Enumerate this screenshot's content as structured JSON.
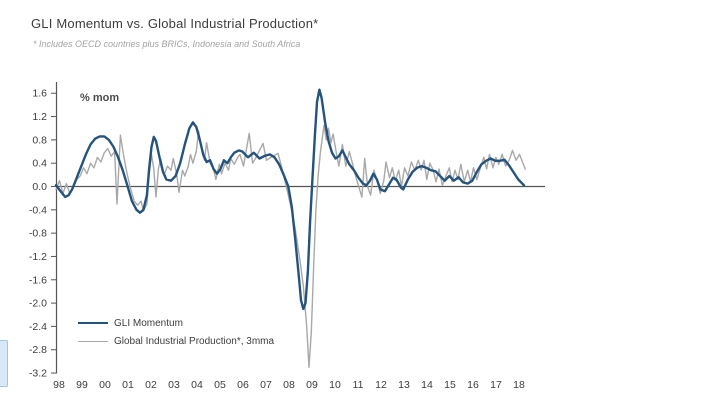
{
  "title": "GLI Momentum vs. Global Industrial Production*",
  "footnote": "* Includes OECD countries plus BRICs, Indonesia and South Africa",
  "unit_label": "% mom",
  "legend": {
    "items": [
      {
        "label": "GLI Momentum"
      },
      {
        "label": "Global Industrial Production*, 3mma"
      }
    ]
  },
  "colors": {
    "gli_momentum": "#24547e",
    "global_ip": "#a8a8a8",
    "axis": "#555555",
    "tick_text": "#3d3d3d",
    "title_text": "#3d3d3d",
    "footnote_text": "#a3a3a3"
  },
  "chart_data": {
    "type": "line",
    "title": "GLI Momentum vs. Global Industrial Production*",
    "subtitle": "* Includes OECD countries plus BRICs, Indonesia and South Africa",
    "ylabel": "% mom",
    "ylim": [
      -3.2,
      1.6
    ],
    "xlim": [
      1998,
      2018.9
    ],
    "grid": false,
    "legend_position": "lower-left",
    "y_ticks": [
      "1.6",
      "1.2",
      "0.8",
      "0.4",
      "0.0",
      "-0.4",
      "-0.8",
      "-1.2",
      "-1.6",
      "-2.0",
      "-2.4",
      "-2.8",
      "-3.2"
    ],
    "x_ticks": [
      {
        "label": "98",
        "year": 1998
      },
      {
        "label": "99",
        "year": 1999
      },
      {
        "label": "00",
        "year": 2000
      },
      {
        "label": "01",
        "year": 2001
      },
      {
        "label": "02",
        "year": 2002
      },
      {
        "label": "03",
        "year": 2003
      },
      {
        "label": "04",
        "year": 2004
      },
      {
        "label": "05",
        "year": 2005
      },
      {
        "label": "06",
        "year": 2006
      },
      {
        "label": "07",
        "year": 2007
      },
      {
        "label": "08",
        "year": 2008
      },
      {
        "label": "09",
        "year": 2009
      },
      {
        "label": "10",
        "year": 2010
      },
      {
        "label": "11",
        "year": 2011
      },
      {
        "label": "12",
        "year": 2012
      },
      {
        "label": "13",
        "year": 2013
      },
      {
        "label": "14",
        "year": 2014
      },
      {
        "label": "15",
        "year": 2015
      },
      {
        "label": "16",
        "year": 2016
      },
      {
        "label": "17",
        "year": 2017
      },
      {
        "label": "18",
        "year": 2018
      }
    ],
    "series": [
      {
        "name": "GLI Momentum",
        "color": "#24547e",
        "stroke_width": 2.4,
        "points": [
          [
            1998.0,
            0.02
          ],
          [
            1998.2,
            -0.08
          ],
          [
            1998.4,
            -0.18
          ],
          [
            1998.55,
            -0.15
          ],
          [
            1998.7,
            -0.05
          ],
          [
            1998.9,
            0.15
          ],
          [
            1999.1,
            0.35
          ],
          [
            1999.3,
            0.55
          ],
          [
            1999.5,
            0.72
          ],
          [
            1999.7,
            0.82
          ],
          [
            1999.9,
            0.86
          ],
          [
            2000.1,
            0.86
          ],
          [
            2000.3,
            0.8
          ],
          [
            2000.5,
            0.68
          ],
          [
            2000.7,
            0.5
          ],
          [
            2000.9,
            0.28
          ],
          [
            2001.1,
            0.02
          ],
          [
            2001.3,
            -0.25
          ],
          [
            2001.5,
            -0.4
          ],
          [
            2001.65,
            -0.45
          ],
          [
            2001.8,
            -0.4
          ],
          [
            2001.95,
            -0.15
          ],
          [
            2002.05,
            0.3
          ],
          [
            2002.15,
            0.68
          ],
          [
            2002.25,
            0.85
          ],
          [
            2002.35,
            0.78
          ],
          [
            2002.5,
            0.5
          ],
          [
            2002.65,
            0.25
          ],
          [
            2002.8,
            0.12
          ],
          [
            2003.0,
            0.1
          ],
          [
            2003.2,
            0.18
          ],
          [
            2003.4,
            0.4
          ],
          [
            2003.6,
            0.72
          ],
          [
            2003.8,
            1.0
          ],
          [
            2003.95,
            1.1
          ],
          [
            2004.1,
            1.02
          ],
          [
            2004.25,
            0.8
          ],
          [
            2004.4,
            0.55
          ],
          [
            2004.55,
            0.42
          ],
          [
            2004.7,
            0.45
          ],
          [
            2004.85,
            0.3
          ],
          [
            2005.0,
            0.22
          ],
          [
            2005.15,
            0.3
          ],
          [
            2005.3,
            0.45
          ],
          [
            2005.45,
            0.4
          ],
          [
            2005.6,
            0.5
          ],
          [
            2005.75,
            0.58
          ],
          [
            2005.95,
            0.62
          ],
          [
            2006.1,
            0.6
          ],
          [
            2006.35,
            0.5
          ],
          [
            2006.6,
            0.58
          ],
          [
            2006.85,
            0.48
          ],
          [
            2007.1,
            0.53
          ],
          [
            2007.3,
            0.55
          ],
          [
            2007.5,
            0.5
          ],
          [
            2007.7,
            0.38
          ],
          [
            2007.9,
            0.2
          ],
          [
            2008.1,
            0.0
          ],
          [
            2008.25,
            -0.35
          ],
          [
            2008.4,
            -0.9
          ],
          [
            2008.55,
            -1.5
          ],
          [
            2008.65,
            -1.95
          ],
          [
            2008.75,
            -2.1
          ],
          [
            2008.85,
            -2.0
          ],
          [
            2008.95,
            -1.45
          ],
          [
            2009.05,
            -0.6
          ],
          [
            2009.15,
            0.15
          ],
          [
            2009.25,
            0.85
          ],
          [
            2009.35,
            1.45
          ],
          [
            2009.45,
            1.66
          ],
          [
            2009.55,
            1.52
          ],
          [
            2009.7,
            1.1
          ],
          [
            2009.85,
            0.78
          ],
          [
            2010.0,
            0.58
          ],
          [
            2010.15,
            0.48
          ],
          [
            2010.3,
            0.52
          ],
          [
            2010.45,
            0.62
          ],
          [
            2010.6,
            0.5
          ],
          [
            2010.75,
            0.38
          ],
          [
            2010.95,
            0.28
          ],
          [
            2011.15,
            0.15
          ],
          [
            2011.35,
            0.05
          ],
          [
            2011.5,
            0.02
          ],
          [
            2011.65,
            0.1
          ],
          [
            2011.8,
            0.22
          ],
          [
            2011.95,
            0.12
          ],
          [
            2012.1,
            -0.05
          ],
          [
            2012.3,
            -0.08
          ],
          [
            2012.5,
            0.05
          ],
          [
            2012.65,
            0.15
          ],
          [
            2012.8,
            0.12
          ],
          [
            2013.0,
            -0.02
          ],
          [
            2013.1,
            -0.05
          ],
          [
            2013.3,
            0.12
          ],
          [
            2013.5,
            0.25
          ],
          [
            2013.7,
            0.32
          ],
          [
            2013.9,
            0.35
          ],
          [
            2014.1,
            0.32
          ],
          [
            2014.3,
            0.28
          ],
          [
            2014.5,
            0.26
          ],
          [
            2014.7,
            0.18
          ],
          [
            2014.9,
            0.1
          ],
          [
            2015.1,
            0.18
          ],
          [
            2015.3,
            0.1
          ],
          [
            2015.5,
            0.16
          ],
          [
            2015.7,
            0.07
          ],
          [
            2015.9,
            0.05
          ],
          [
            2016.1,
            0.1
          ],
          [
            2016.3,
            0.25
          ],
          [
            2016.5,
            0.38
          ],
          [
            2016.7,
            0.44
          ],
          [
            2016.9,
            0.48
          ],
          [
            2017.1,
            0.44
          ],
          [
            2017.3,
            0.44
          ],
          [
            2017.5,
            0.46
          ],
          [
            2017.7,
            0.36
          ],
          [
            2017.9,
            0.24
          ],
          [
            2018.1,
            0.12
          ],
          [
            2018.35,
            0.02
          ]
        ]
      },
      {
        "name": "Global Industrial Production*, 3mma",
        "color": "#a8a8a8",
        "stroke_width": 1.4,
        "points": [
          [
            1998.0,
            -0.05
          ],
          [
            1998.15,
            0.1
          ],
          [
            1998.3,
            -0.12
          ],
          [
            1998.45,
            0.05
          ],
          [
            1998.6,
            -0.12
          ],
          [
            1998.75,
            -0.02
          ],
          [
            1998.9,
            0.12
          ],
          [
            1999.05,
            0.18
          ],
          [
            1999.2,
            0.32
          ],
          [
            1999.35,
            0.22
          ],
          [
            1999.5,
            0.4
          ],
          [
            1999.65,
            0.32
          ],
          [
            1999.8,
            0.5
          ],
          [
            1999.95,
            0.42
          ],
          [
            2000.1,
            0.58
          ],
          [
            2000.25,
            0.65
          ],
          [
            2000.4,
            0.52
          ],
          [
            2000.55,
            0.6
          ],
          [
            2000.65,
            -0.3
          ],
          [
            2000.8,
            0.88
          ],
          [
            2000.95,
            0.5
          ],
          [
            2001.1,
            0.2
          ],
          [
            2001.25,
            -0.05
          ],
          [
            2001.4,
            -0.25
          ],
          [
            2001.55,
            -0.32
          ],
          [
            2001.7,
            -0.25
          ],
          [
            2001.8,
            -0.42
          ],
          [
            2001.95,
            -0.3
          ],
          [
            2002.05,
            0.2
          ],
          [
            2002.15,
            0.55
          ],
          [
            2002.25,
            0.3
          ],
          [
            2002.35,
            -0.18
          ],
          [
            2002.45,
            0.3
          ],
          [
            2002.55,
            0.48
          ],
          [
            2002.7,
            0.2
          ],
          [
            2002.85,
            0.35
          ],
          [
            2003.0,
            0.28
          ],
          [
            2003.1,
            0.48
          ],
          [
            2003.25,
            0.2
          ],
          [
            2003.35,
            -0.1
          ],
          [
            2003.5,
            0.28
          ],
          [
            2003.6,
            0.18
          ],
          [
            2003.75,
            0.35
          ],
          [
            2003.85,
            0.55
          ],
          [
            2003.95,
            0.4
          ],
          [
            2004.1,
            0.6
          ],
          [
            2004.2,
            0.95
          ],
          [
            2004.35,
            0.6
          ],
          [
            2004.45,
            0.45
          ],
          [
            2004.55,
            0.75
          ],
          [
            2004.7,
            0.4
          ],
          [
            2004.85,
            0.3
          ],
          [
            2004.95,
            0.12
          ],
          [
            2005.1,
            0.38
          ],
          [
            2005.2,
            0.22
          ],
          [
            2005.35,
            0.4
          ],
          [
            2005.5,
            0.28
          ],
          [
            2005.6,
            0.48
          ],
          [
            2005.75,
            0.38
          ],
          [
            2005.9,
            0.5
          ],
          [
            2006.0,
            0.55
          ],
          [
            2006.15,
            0.35
          ],
          [
            2006.4,
            0.91
          ],
          [
            2006.55,
            0.4
          ],
          [
            2006.7,
            0.5
          ],
          [
            2007.0,
            0.74
          ],
          [
            2007.15,
            0.45
          ],
          [
            2007.35,
            0.5
          ],
          [
            2007.65,
            0.57
          ],
          [
            2007.8,
            0.35
          ],
          [
            2007.95,
            0.1
          ],
          [
            2008.1,
            -0.15
          ],
          [
            2008.3,
            -0.5
          ],
          [
            2008.45,
            -0.85
          ],
          [
            2008.6,
            -1.25
          ],
          [
            2008.75,
            -1.7
          ],
          [
            2008.9,
            -2.4
          ],
          [
            2009.0,
            -3.1
          ],
          [
            2009.1,
            -2.5
          ],
          [
            2009.2,
            -1.4
          ],
          [
            2009.3,
            -0.4
          ],
          [
            2009.4,
            0.2
          ],
          [
            2009.5,
            0.6
          ],
          [
            2009.65,
            1.05
          ],
          [
            2009.75,
            0.8
          ],
          [
            2009.85,
            1.0
          ],
          [
            2009.95,
            0.75
          ],
          [
            2010.05,
            0.9
          ],
          [
            2010.2,
            0.55
          ],
          [
            2010.3,
            0.35
          ],
          [
            2010.45,
            0.72
          ],
          [
            2010.6,
            0.35
          ],
          [
            2010.75,
            0.6
          ],
          [
            2010.9,
            0.38
          ],
          [
            2011.05,
            0.15
          ],
          [
            2011.2,
            -0.05
          ],
          [
            2011.3,
            -0.18
          ],
          [
            2011.42,
            0.48
          ],
          [
            2011.55,
            0.0
          ],
          [
            2011.68,
            -0.15
          ],
          [
            2011.82,
            0.28
          ],
          [
            2011.95,
            0.12
          ],
          [
            2012.1,
            -0.12
          ],
          [
            2012.25,
            0.1
          ],
          [
            2012.35,
            0.42
          ],
          [
            2012.5,
            0.15
          ],
          [
            2012.62,
            0.32
          ],
          [
            2012.75,
            0.1
          ],
          [
            2012.9,
            0.28
          ],
          [
            2013.02,
            0.0
          ],
          [
            2013.15,
            0.32
          ],
          [
            2013.3,
            0.18
          ],
          [
            2013.45,
            0.42
          ],
          [
            2013.6,
            0.28
          ],
          [
            2013.75,
            0.45
          ],
          [
            2013.88,
            0.28
          ],
          [
            2014.0,
            0.45
          ],
          [
            2014.12,
            0.12
          ],
          [
            2014.25,
            0.4
          ],
          [
            2014.4,
            0.28
          ],
          [
            2014.52,
            0.08
          ],
          [
            2014.65,
            0.3
          ],
          [
            2014.8,
            0.02
          ],
          [
            2014.95,
            0.18
          ],
          [
            2015.1,
            0.32
          ],
          [
            2015.22,
            0.08
          ],
          [
            2015.35,
            0.28
          ],
          [
            2015.48,
            0.12
          ],
          [
            2015.6,
            0.38
          ],
          [
            2015.75,
            0.08
          ],
          [
            2015.9,
            0.28
          ],
          [
            2016.02,
            0.08
          ],
          [
            2016.15,
            0.32
          ],
          [
            2016.3,
            0.12
          ],
          [
            2016.45,
            0.32
          ],
          [
            2016.6,
            0.5
          ],
          [
            2016.72,
            0.3
          ],
          [
            2016.85,
            0.55
          ],
          [
            2017.0,
            0.32
          ],
          [
            2017.12,
            0.5
          ],
          [
            2017.25,
            0.38
          ],
          [
            2017.4,
            0.55
          ],
          [
            2017.55,
            0.35
          ],
          [
            2017.7,
            0.45
          ],
          [
            2017.85,
            0.62
          ],
          [
            2018.0,
            0.45
          ],
          [
            2018.15,
            0.55
          ],
          [
            2018.4,
            0.3
          ]
        ]
      }
    ]
  }
}
